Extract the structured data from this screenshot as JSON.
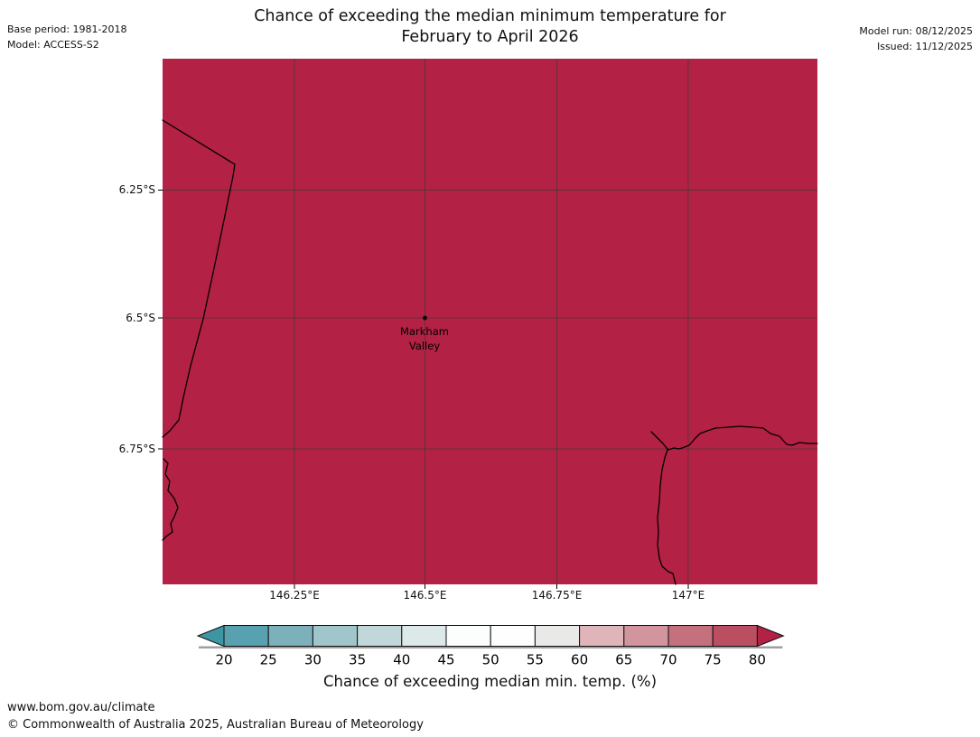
{
  "header": {
    "title_line1": "Chance of exceeding the median minimum temperature for",
    "title_line2": "February to April 2026",
    "base_period": "Base period: 1981-2018",
    "model": "Model: ACCESS-S2",
    "model_run": "Model run: 08/12/2025",
    "issued": "Issued: 11/12/2025"
  },
  "map": {
    "fill_color": "#b32144",
    "marker_label_line1": "Markham",
    "marker_label_line2": "Valley",
    "y_axis_labels": [
      "6.25°S",
      "6.5°S",
      "6.75°S"
    ],
    "x_axis_labels": [
      "146.25°E",
      "146.5°E",
      "146.75°E",
      "147°E"
    ]
  },
  "colorbar": {
    "label": "Chance of exceeding median min. temp. (%)",
    "tick_labels": [
      "20",
      "25",
      "30",
      "35",
      "40",
      "45",
      "50",
      "55",
      "60",
      "65",
      "70",
      "75",
      "80"
    ],
    "left_arrow_color": "#3e95a4",
    "right_arrow_color": "#b32144",
    "segment_colors": [
      "#58a1b0",
      "#7cb1bb",
      "#a0c5ca",
      "#c2d7d9",
      "#dde8e9",
      "#fcfdfd",
      "#fefefe",
      "#e9e9e7",
      "#e0b5ba",
      "#d2949d",
      "#c4717d",
      "#bb4e60"
    ]
  },
  "footer": {
    "url": "www.bom.gov.au/climate",
    "copyright": "© Commonwealth of Australia 2025, Australian Bureau of Meteorology"
  },
  "chart_data": {
    "type": "heatmap",
    "title": "Chance of exceeding the median minimum temperature for February to April 2026",
    "x_ticks": [
      "146.25°E",
      "146.5°E",
      "146.75°E",
      "147°E"
    ],
    "y_ticks": [
      "6.25°S",
      "6.5°S",
      "6.75°S"
    ],
    "colorbar_label": "Chance of exceeding median min. temp. (%)",
    "colorbar_ticks": [
      20,
      25,
      30,
      35,
      40,
      45,
      50,
      55,
      60,
      65,
      70,
      75,
      80
    ],
    "region_value": "entire mapped region shown in the >80% color class",
    "marker": {
      "name": "Markham Valley",
      "lat": "6.5°S",
      "lon": "146.5°E"
    }
  }
}
